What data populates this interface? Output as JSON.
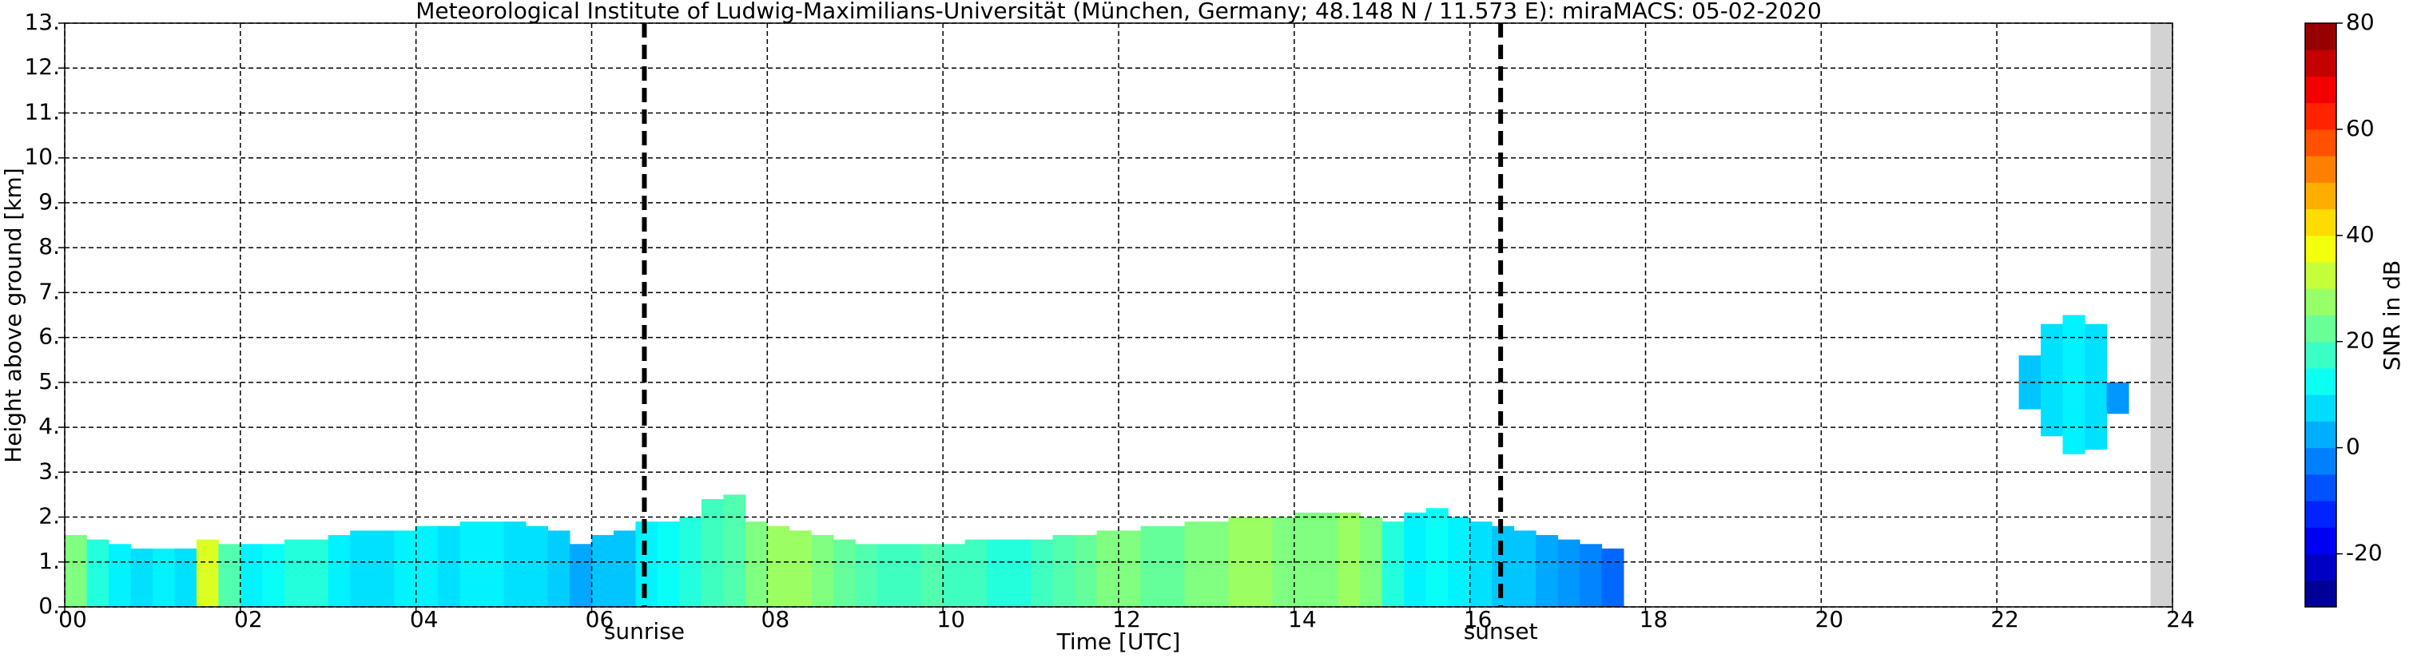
{
  "chart_data": {
    "type": "radar-time-height",
    "title": "Meteorological Institute of Ludwig-Maximilians-Universität (München, Germany; 48.148 N / 11.573 E):    miraMACS: 05-02-2020",
    "xlabel": "Time [UTC]",
    "ylabel": "Height above ground [km]",
    "colorbar_label": "SNR in dB",
    "xlim": [
      0,
      24
    ],
    "xticks": [
      {
        "value": 0,
        "label": "00"
      },
      {
        "value": 2,
        "label": "02"
      },
      {
        "value": 4,
        "label": "04"
      },
      {
        "value": 6,
        "label": "06"
      },
      {
        "value": 8,
        "label": "08"
      },
      {
        "value": 10,
        "label": "10"
      },
      {
        "value": 12,
        "label": "12"
      },
      {
        "value": 14,
        "label": "14"
      },
      {
        "value": 16,
        "label": "16"
      },
      {
        "value": 18,
        "label": "18"
      },
      {
        "value": 20,
        "label": "20"
      },
      {
        "value": 22,
        "label": "22"
      },
      {
        "value": 24,
        "label": "24"
      }
    ],
    "ylim": [
      0,
      13
    ],
    "yticks": [
      {
        "value": 0,
        "label": "0."
      },
      {
        "value": 1,
        "label": "1."
      },
      {
        "value": 2,
        "label": "2."
      },
      {
        "value": 3,
        "label": "3."
      },
      {
        "value": 4,
        "label": "4."
      },
      {
        "value": 5,
        "label": "5."
      },
      {
        "value": 6,
        "label": "6."
      },
      {
        "value": 7,
        "label": "7."
      },
      {
        "value": 8,
        "label": "8."
      },
      {
        "value": 9,
        "label": "9."
      },
      {
        "value": 10,
        "label": "10."
      },
      {
        "value": 11,
        "label": "11."
      },
      {
        "value": 12,
        "label": "12."
      },
      {
        "value": 13,
        "label": "13."
      }
    ],
    "zlim": [
      -30,
      80
    ],
    "zticks": [
      -20,
      0,
      20,
      40,
      60,
      80
    ],
    "grid": true,
    "colormap": "jet",
    "nodata_x": [
      23.75,
      24
    ],
    "events": [
      {
        "label": "sunrise",
        "time": 6.6
      },
      {
        "label": "sunset",
        "time": 16.35
      }
    ],
    "bin_width": 0.25,
    "x": [
      0,
      0.25,
      0.5,
      0.75,
      1,
      1.25,
      1.5,
      1.75,
      2,
      2.25,
      2.5,
      2.75,
      3,
      3.25,
      3.5,
      3.75,
      4,
      4.25,
      4.5,
      4.75,
      5,
      5.25,
      5.5,
      5.75,
      6,
      6.25,
      6.5,
      6.75,
      7,
      7.25,
      7.5,
      7.75,
      8,
      8.25,
      8.5,
      8.75,
      9,
      9.25,
      9.5,
      9.75,
      10,
      10.25,
      10.5,
      10.75,
      11,
      11.25,
      11.5,
      11.75,
      12,
      12.25,
      12.5,
      12.75,
      13,
      13.25,
      13.5,
      13.75,
      14,
      14.25,
      14.5,
      14.75,
      15,
      15.25,
      15.5,
      15.75,
      16,
      16.25,
      16.5,
      16.75,
      17,
      17.25,
      17.5,
      17.75,
      18,
      18.25,
      18.5,
      18.75,
      19,
      19.25,
      19.5,
      19.75,
      20,
      20.25,
      20.5,
      20.75,
      21,
      21.25,
      21.5,
      21.75,
      22,
      22.25,
      22.5,
      22.75,
      23,
      23.25,
      23.5,
      23.75
    ],
    "echo_base": [
      0,
      0,
      0,
      0,
      0,
      0,
      0,
      0,
      0,
      0,
      0,
      0,
      0,
      0,
      0,
      0,
      0,
      0,
      0,
      0,
      0,
      0,
      0,
      0,
      0,
      0,
      0,
      0,
      0,
      0,
      0,
      0,
      0,
      0,
      0,
      0,
      0,
      0,
      0,
      0,
      0,
      0,
      0,
      0,
      0,
      0,
      0,
      0,
      0,
      0,
      0,
      0,
      0,
      0,
      0,
      0,
      0,
      0,
      0,
      0,
      0,
      0,
      0,
      0,
      0,
      0,
      0,
      0,
      0,
      0,
      0,
      null,
      null,
      null,
      null,
      null,
      null,
      null,
      null,
      null,
      null,
      null,
      null,
      null,
      null,
      null,
      null,
      null,
      null,
      4.4,
      3.8,
      3.4,
      3.5,
      4.3,
      null,
      null
    ],
    "echo_top": [
      1.6,
      1.5,
      1.4,
      1.3,
      1.3,
      1.3,
      1.5,
      1.4,
      1.4,
      1.4,
      1.5,
      1.5,
      1.6,
      1.7,
      1.7,
      1.7,
      1.8,
      1.8,
      1.9,
      1.9,
      1.9,
      1.8,
      1.7,
      1.4,
      1.6,
      1.7,
      1.9,
      1.9,
      2.0,
      2.4,
      2.5,
      1.9,
      1.8,
      1.7,
      1.6,
      1.5,
      1.4,
      1.4,
      1.4,
      1.4,
      1.4,
      1.5,
      1.5,
      1.5,
      1.5,
      1.6,
      1.6,
      1.7,
      1.7,
      1.8,
      1.8,
      1.9,
      1.9,
      2.0,
      2.0,
      2.0,
      2.1,
      2.1,
      2.1,
      2.0,
      1.9,
      2.1,
      2.2,
      2.0,
      1.9,
      1.8,
      1.7,
      1.6,
      1.5,
      1.4,
      1.3,
      null,
      null,
      null,
      null,
      null,
      null,
      null,
      null,
      null,
      null,
      null,
      null,
      null,
      null,
      null,
      null,
      null,
      null,
      5.6,
      6.3,
      6.5,
      6.3,
      5.0,
      null,
      null
    ],
    "snr": [
      25,
      15,
      10,
      8,
      10,
      8,
      35,
      20,
      10,
      12,
      15,
      15,
      10,
      8,
      8,
      10,
      10,
      8,
      10,
      10,
      8,
      8,
      6,
      2,
      5,
      5,
      10,
      12,
      15,
      18,
      20,
      25,
      28,
      28,
      25,
      22,
      20,
      18,
      18,
      20,
      18,
      18,
      15,
      15,
      18,
      20,
      22,
      25,
      25,
      22,
      22,
      25,
      25,
      28,
      28,
      25,
      25,
      25,
      28,
      25,
      15,
      10,
      12,
      10,
      8,
      5,
      5,
      2,
      0,
      -2,
      -5,
      null,
      null,
      null,
      null,
      null,
      null,
      null,
      null,
      null,
      null,
      null,
      null,
      null,
      null,
      null,
      null,
      null,
      null,
      5,
      8,
      10,
      8,
      0,
      null,
      null
    ]
  }
}
